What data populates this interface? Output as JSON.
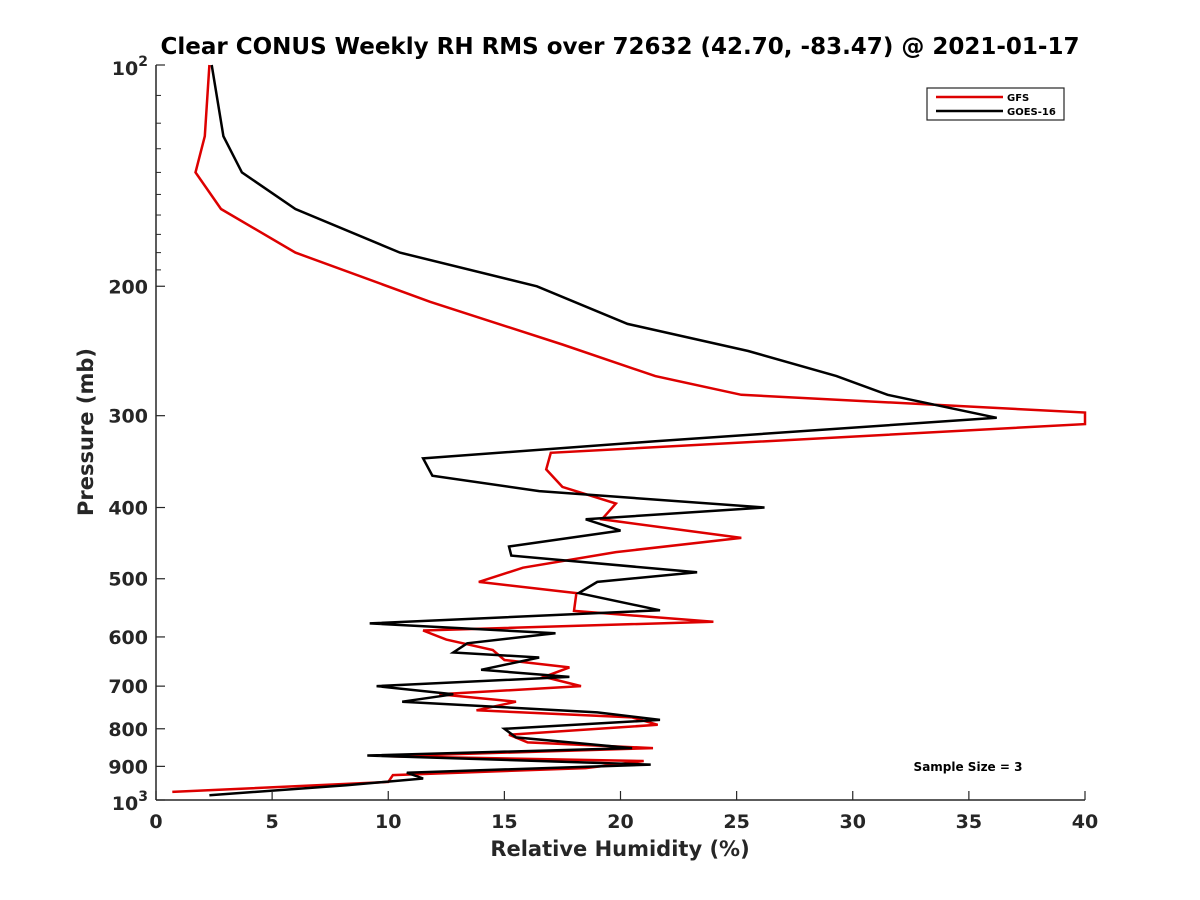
{
  "chart_data": {
    "type": "line",
    "title": "Clear CONUS Weekly RH RMS over 72632 (42.70, -83.47) @ 2021-01-17",
    "xlabel": "Relative Humidity (%)",
    "ylabel": "Pressure (mb)",
    "xlim": [
      0,
      40
    ],
    "ylim": [
      100,
      1000
    ],
    "y_scale": "log",
    "y_reversed": true,
    "x_ticks": [
      0,
      5,
      10,
      15,
      20,
      25,
      30,
      35,
      40
    ],
    "x_tick_labels": [
      "0",
      "5",
      "10",
      "15",
      "20",
      "25",
      "30",
      "35",
      "40"
    ],
    "y_ticks": [
      200,
      300,
      400,
      500,
      600,
      700,
      800,
      900
    ],
    "y_tick_labels": [
      "200",
      "300",
      "400",
      "500",
      "600",
      "700",
      "800",
      "900"
    ],
    "y_end_labels": {
      "top": {
        "base": "10",
        "exp": "2"
      },
      "bottom": {
        "base": "10",
        "exp": "3"
      }
    },
    "legend": {
      "position": "top-right"
    },
    "annotation": "Sample Size = 3",
    "grid": false,
    "series": [
      {
        "name": "GFS",
        "color": "#dd0000",
        "points": [
          [
            2.3,
            100
          ],
          [
            2.1,
            125
          ],
          [
            1.7,
            140
          ],
          [
            2.8,
            157
          ],
          [
            6.0,
            180
          ],
          [
            11.8,
            210
          ],
          [
            17.5,
            240
          ],
          [
            21.5,
            265
          ],
          [
            25.2,
            281
          ],
          [
            40.0,
            297
          ],
          [
            40.0,
            308
          ],
          [
            17.0,
            337
          ],
          [
            16.8,
            355
          ],
          [
            17.5,
            375
          ],
          [
            19.8,
            395
          ],
          [
            19.2,
            415
          ],
          [
            25.2,
            440
          ],
          [
            19.8,
            460
          ],
          [
            15.8,
            483
          ],
          [
            13.9,
            505
          ],
          [
            18.1,
            523
          ],
          [
            18.0,
            553
          ],
          [
            24.0,
            572
          ],
          [
            11.5,
            588
          ],
          [
            12.5,
            605
          ],
          [
            14.5,
            625
          ],
          [
            15.0,
            645
          ],
          [
            17.8,
            660
          ],
          [
            16.7,
            680
          ],
          [
            18.3,
            700
          ],
          [
            12.2,
            718
          ],
          [
            15.5,
            735
          ],
          [
            13.8,
            755
          ],
          [
            20.5,
            772
          ],
          [
            21.6,
            790
          ],
          [
            15.2,
            815
          ],
          [
            16.0,
            835
          ],
          [
            21.4,
            850
          ],
          [
            10.0,
            872
          ],
          [
            21.0,
            885
          ],
          [
            18.5,
            905
          ],
          [
            10.2,
            925
          ],
          [
            10.0,
            945
          ],
          [
            0.7,
            975
          ]
        ]
      },
      {
        "name": "GOES-16",
        "color": "#000000",
        "points": [
          [
            2.4,
            100
          ],
          [
            2.9,
            125
          ],
          [
            3.7,
            140
          ],
          [
            6.0,
            157
          ],
          [
            10.5,
            180
          ],
          [
            16.4,
            200
          ],
          [
            20.3,
            225
          ],
          [
            25.5,
            245
          ],
          [
            29.3,
            265
          ],
          [
            31.5,
            281
          ],
          [
            36.2,
            302
          ],
          [
            21.5,
            325
          ],
          [
            11.5,
            343
          ],
          [
            11.9,
            362
          ],
          [
            16.5,
            380
          ],
          [
            26.2,
            400
          ],
          [
            18.5,
            415
          ],
          [
            20.0,
            430
          ],
          [
            15.2,
            452
          ],
          [
            15.3,
            465
          ],
          [
            23.3,
            490
          ],
          [
            19.0,
            505
          ],
          [
            18.2,
            523
          ],
          [
            21.7,
            552
          ],
          [
            9.2,
            575
          ],
          [
            17.2,
            593
          ],
          [
            13.4,
            612
          ],
          [
            12.8,
            630
          ],
          [
            16.5,
            640
          ],
          [
            14.0,
            665
          ],
          [
            17.8,
            680
          ],
          [
            9.5,
            700
          ],
          [
            12.8,
            718
          ],
          [
            10.6,
            735
          ],
          [
            19.0,
            760
          ],
          [
            21.7,
            778
          ],
          [
            15.0,
            800
          ],
          [
            15.5,
            822
          ],
          [
            20.5,
            850
          ],
          [
            9.1,
            870
          ],
          [
            21.3,
            895
          ],
          [
            10.8,
            918
          ],
          [
            11.5,
            935
          ],
          [
            8.2,
            955
          ],
          [
            2.3,
            985
          ]
        ]
      }
    ]
  }
}
